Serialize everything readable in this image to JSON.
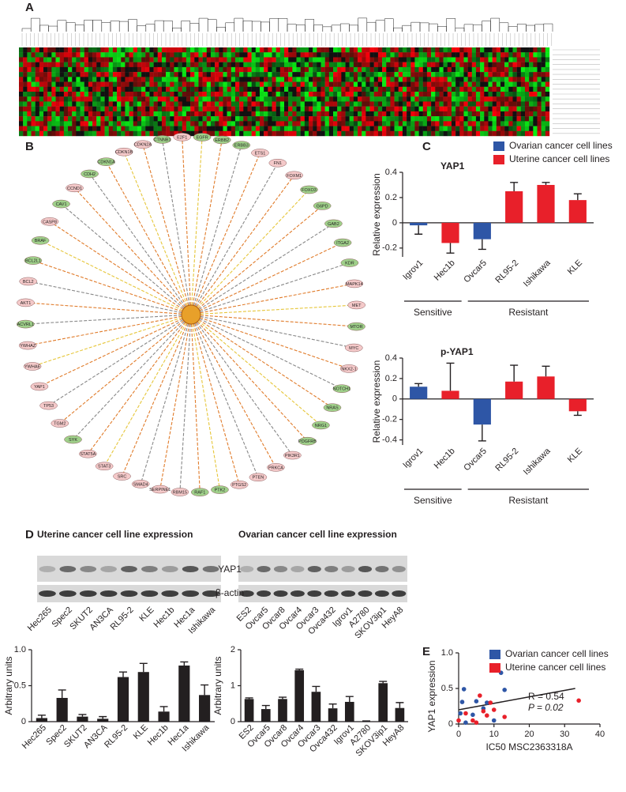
{
  "panels": [
    "A",
    "B",
    "C",
    "D",
    "E"
  ],
  "network": {
    "nodes": [
      {
        "label": "CTNNB1",
        "color": "#9fd08a"
      },
      {
        "label": "E2F1",
        "color": "#f4c9c9"
      },
      {
        "label": "EGFR",
        "color": "#9fd08a"
      },
      {
        "label": "ERBB2",
        "color": "#9fd08a"
      },
      {
        "label": "ERBB3",
        "color": "#9fd08a"
      },
      {
        "label": "ETS1",
        "color": "#f4c9c9"
      },
      {
        "label": "FN1",
        "color": "#f4c9c9"
      },
      {
        "label": "FOXM1",
        "color": "#f4c9c9"
      },
      {
        "label": "FOXO3",
        "color": "#9fd08a"
      },
      {
        "label": "G6PD",
        "color": "#9fd08a"
      },
      {
        "label": "GAB2",
        "color": "#9fd08a"
      },
      {
        "label": "ITGA2",
        "color": "#9fd08a"
      },
      {
        "label": "KDR",
        "color": "#9fd08a"
      },
      {
        "label": "MAPK14",
        "color": "#f4c9c9"
      },
      {
        "label": "MET",
        "color": "#f4c9c9"
      },
      {
        "label": "MTOR",
        "color": "#9fd08a"
      },
      {
        "label": "MYC",
        "color": "#f4c9c9"
      },
      {
        "label": "NKX2-1",
        "color": "#f4c9c9"
      },
      {
        "label": "NOTCH1",
        "color": "#9fd08a"
      },
      {
        "label": "NRAS",
        "color": "#9fd08a"
      },
      {
        "label": "NRG1",
        "color": "#9fd08a"
      },
      {
        "label": "PDGFRB",
        "color": "#9fd08a"
      },
      {
        "label": "PIK3R1",
        "color": "#f4c9c9"
      },
      {
        "label": "PRKCA",
        "color": "#f4c9c9"
      },
      {
        "label": "PTEN",
        "color": "#f4c9c9"
      },
      {
        "label": "PTGS2",
        "color": "#f4c9c9"
      },
      {
        "label": "PTK2",
        "color": "#9fd08a"
      },
      {
        "label": "RAF1",
        "color": "#9fd08a"
      },
      {
        "label": "RBM15",
        "color": "#f4c9c9"
      },
      {
        "label": "SERPINE1",
        "color": "#f4c9c9"
      },
      {
        "label": "SMAD4",
        "color": "#f4c9c9"
      },
      {
        "label": "SRC",
        "color": "#f4c9c9"
      },
      {
        "label": "STAT3",
        "color": "#f4c9c9"
      },
      {
        "label": "STAT5A",
        "color": "#f4c9c9"
      },
      {
        "label": "SYK",
        "color": "#9fd08a"
      },
      {
        "label": "TGM2",
        "color": "#f4c9c9"
      },
      {
        "label": "TP53",
        "color": "#f4c9c9"
      },
      {
        "label": "YAP1",
        "color": "#f4c9c9"
      },
      {
        "label": "YWHAE",
        "color": "#f4c9c9"
      },
      {
        "label": "YWHAZ",
        "color": "#f4c9c9"
      },
      {
        "label": "ACVRL1",
        "color": "#9fd08a"
      },
      {
        "label": "AKT1",
        "color": "#f4c9c9"
      },
      {
        "label": "BCL2",
        "color": "#f4c9c9"
      },
      {
        "label": "BCL2L1",
        "color": "#9fd08a"
      },
      {
        "label": "BRAF",
        "color": "#9fd08a"
      },
      {
        "label": "CASP8",
        "color": "#f4c9c9"
      },
      {
        "label": "CAV1",
        "color": "#9fd08a"
      },
      {
        "label": "CCND1",
        "color": "#f4c9c9"
      },
      {
        "label": "CDH2",
        "color": "#9fd08a"
      },
      {
        "label": "CDKN1A",
        "color": "#9fd08a"
      },
      {
        "label": "CDKN1B",
        "color": "#f4c9c9"
      },
      {
        "label": "CDKN2A",
        "color": "#f4c9c9"
      }
    ]
  },
  "blots": {
    "uterine": {
      "title": "Uterine cancer cell line expression",
      "lanes": [
        "Hec265",
        "Spec2",
        "SKUT2",
        "AN3CA",
        "RL95-2",
        "KLE",
        "Hec1b",
        "Hec1a",
        "Ishikawa"
      ]
    },
    "ovarian": {
      "title": "Ovarian cancer cell line expression",
      "lanes": [
        "ES2",
        "Ovcar5",
        "Ovcar8",
        "Ovcar4",
        "Ovcar3",
        "Ovca432",
        "Igrov1",
        "A2780",
        "SKOV3ip1",
        "HeyA8"
      ]
    },
    "proteins": [
      "YAP1",
      "β-actin"
    ]
  },
  "chart_data": [
    {
      "type": "bar",
      "title": "YAP1",
      "y_label": "Relative expression",
      "categories": [
        "Igrov1",
        "Hec1b",
        "Ovcar5",
        "RL95-2",
        "Ishikawa",
        "KLE"
      ],
      "series": [
        {
          "name": "Ovarian cancer cell lines",
          "color": "#2e56a6",
          "values": [
            -0.02,
            null,
            -0.13,
            null,
            null,
            null
          ],
          "errors": [
            0.07,
            null,
            0.08,
            null,
            null,
            null
          ]
        },
        {
          "name": "Uterine cancer cell lines",
          "color": "#e8202a",
          "values": [
            null,
            -0.16,
            null,
            0.25,
            0.3,
            0.18
          ],
          "errors": [
            null,
            0.08,
            null,
            0.07,
            0.02,
            0.05
          ]
        }
      ],
      "groups": [
        "Sensitive",
        "Resistant"
      ],
      "legend": "upper right",
      "ylim": [
        -0.27,
        0.4
      ],
      "yticks": [
        -0.2,
        0,
        0.2,
        0.4
      ]
    },
    {
      "type": "bar",
      "title": "p-YAP1",
      "y_label": "Relative expression",
      "categories": [
        "Igrov1",
        "Hec1b",
        "Ovcar5",
        "RL95-2",
        "Ishikawa",
        "KLE"
      ],
      "series": [
        {
          "name": "Ovarian cancer cell lines",
          "color": "#2e56a6",
          "values": [
            0.12,
            null,
            -0.25,
            null,
            null,
            null
          ],
          "errors": [
            0.03,
            null,
            0.16,
            null,
            null,
            null
          ]
        },
        {
          "name": "Uterine cancer cell lines",
          "color": "#e8202a",
          "values": [
            null,
            0.08,
            null,
            0.17,
            0.22,
            -0.12
          ],
          "errors": [
            null,
            0.27,
            null,
            0.16,
            0.1,
            0.04
          ]
        }
      ],
      "groups": [
        "Sensitive",
        "Resistant"
      ],
      "legend": "none",
      "ylim": [
        -0.45,
        0.4
      ],
      "yticks": [
        -0.4,
        -0.2,
        0,
        0.2,
        0.4
      ]
    },
    {
      "type": "bar",
      "y_label": "Arbitrary units",
      "categories": [
        "Hec265",
        "Spec2",
        "SKUT2",
        "AN3CA",
        "RL95-2",
        "KLE",
        "Hec1b",
        "Hec1a",
        "Ishikawa"
      ],
      "series": [
        {
          "color": "#231f20",
          "values": [
            0.05,
            0.33,
            0.07,
            0.04,
            0.62,
            0.69,
            0.14,
            0.78,
            0.37
          ],
          "errors": [
            0.04,
            0.11,
            0.03,
            0.03,
            0.07,
            0.12,
            0.07,
            0.05,
            0.14
          ]
        }
      ],
      "legend": "none",
      "ylim": [
        0,
        1
      ],
      "yticks": [
        0,
        0.5,
        {
          "value": 1,
          "label": "1.0"
        }
      ]
    },
    {
      "type": "bar",
      "y_label": "Arbitrary units",
      "categories": [
        "ES2",
        "Ovcar5",
        "Ovcar8",
        "Ovcar4",
        "Ovcar3",
        "Ovca432",
        "Igrov1",
        "A2780",
        "SKOV3ip1",
        "HeyA8"
      ],
      "series": [
        {
          "color": "#231f20",
          "values": [
            0.63,
            0.35,
            0.63,
            1.43,
            0.83,
            0.37,
            0.55,
            0.01,
            1.07,
            0.38
          ],
          "errors": [
            0.03,
            0.1,
            0.05,
            0.03,
            0.15,
            0.12,
            0.15,
            0.01,
            0.05,
            0.15
          ]
        }
      ],
      "legend": "none",
      "ylim": [
        0,
        2
      ],
      "yticks": [
        0,
        1,
        2
      ]
    },
    {
      "type": "scatter",
      "x_label": "IC50 MSC2363318A",
      "y_label": "YAP1 expression",
      "series": [
        {
          "name": "Ovarian cancer cell lines",
          "color": "#2e56a6",
          "x": [
            0.5,
            1,
            1.5,
            2,
            4,
            5,
            7,
            8,
            10,
            12,
            13
          ],
          "values": [
            0.15,
            0.31,
            0.49,
            0.02,
            0.13,
            0.32,
            0.22,
            0.3,
            0.05,
            0.72,
            0.48
          ]
        },
        {
          "name": "Uterine cancer cell lines",
          "color": "#e8202a",
          "x": [
            0,
            2,
            4,
            5,
            6,
            7,
            8,
            9,
            10,
            13,
            34
          ],
          "values": [
            0.05,
            0.15,
            0.05,
            0.02,
            0.4,
            0.18,
            0.12,
            0.3,
            0.2,
            0.1,
            0.33
          ]
        }
      ],
      "fit": {
        "x": [
          0,
          33
        ],
        "values": [
          0.2,
          0.5
        ]
      },
      "annotations": [
        "R = 0.54",
        "P = 0.02"
      ],
      "legend": "upper right",
      "xlim": [
        0,
        40
      ],
      "xticks": [
        0,
        10,
        20,
        30,
        40
      ],
      "ylim": [
        0,
        1
      ],
      "yticks": [
        0,
        0.5,
        {
          "value": 1,
          "label": "1.0"
        }
      ]
    }
  ]
}
